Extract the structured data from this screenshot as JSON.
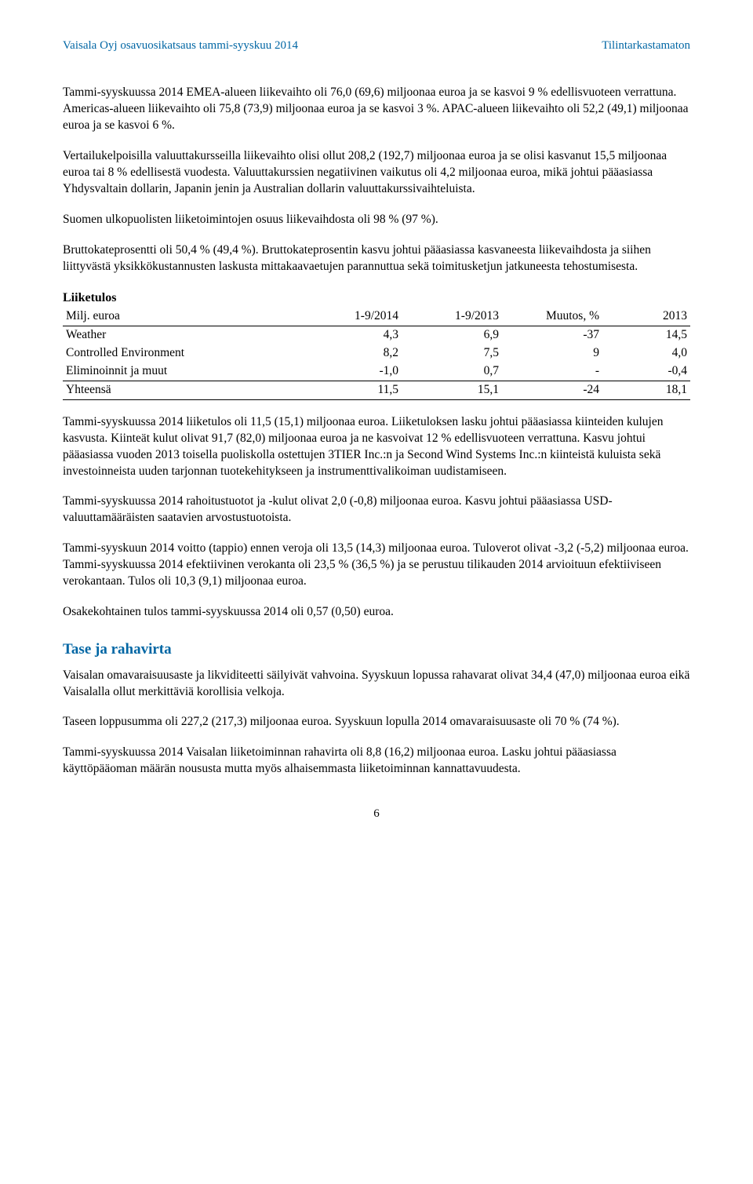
{
  "header": {
    "left": "Vaisala Oyj osavuosikatsaus tammi-syyskuu 2014",
    "right": "Tilintarkastamaton"
  },
  "paragraphs": {
    "p1": "Tammi-syyskuussa 2014 EMEA-alueen liikevaihto oli 76,0 (69,6) miljoonaa euroa ja se kasvoi 9 % edellisvuoteen verrattuna. Americas-alueen liikevaihto oli 75,8 (73,9) miljoonaa euroa ja se kasvoi 3 %. APAC-alueen liikevaihto oli 52,2 (49,1) miljoonaa euroa ja se kasvoi 6 %.",
    "p2": "Vertailukelpoisilla valuuttakursseilla liikevaihto olisi ollut 208,2 (192,7) miljoonaa euroa ja se olisi kasvanut 15,5 miljoonaa euroa tai 8 % edellisestä vuodesta. Valuuttakurssien negatiivinen vaikutus oli 4,2 miljoonaa euroa, mikä johtui pääasiassa Yhdysvaltain dollarin, Japanin jenin ja Australian dollarin valuuttakurssivaihteluista.",
    "p3": "Suomen ulkopuolisten liiketoimintojen osuus liikevaihdosta oli 98 % (97 %).",
    "p4": "Bruttokateprosentti oli 50,4 % (49,4 %). Bruttokateprosentin kasvu johtui pääasiassa kasvaneesta liikevaihdosta ja siihen liittyvästä yksikkökustannusten laskusta mittakaavaetujen parannuttua sekä toimitusketjun jatkuneesta tehostumisesta.",
    "p5": "Tammi-syyskuussa 2014 liiketulos oli 11,5 (15,1) miljoonaa euroa. Liiketuloksen lasku johtui pääasiassa kiinteiden kulujen kasvusta. Kiinteät kulut olivat 91,7 (82,0) miljoonaa euroa ja ne kasvoivat 12 % edellisvuoteen verrattuna. Kasvu johtui pääasiassa vuoden 2013 toisella puoliskolla ostettujen 3TIER Inc.:n ja Second Wind Systems Inc.:n kiinteistä kuluista sekä investoinneista uuden tarjonnan tuotekehitykseen ja instrumenttivalikoiman uudistamiseen.",
    "p6": "Tammi-syyskuussa 2014 rahoitustuotot ja -kulut olivat 2,0 (-0,8) miljoonaa euroa. Kasvu johtui pääasiassa USD-valuuttamääräisten saatavien arvostustuotoista.",
    "p7": "Tammi-syyskuun 2014 voitto (tappio) ennen veroja oli 13,5 (14,3) miljoonaa euroa. Tuloverot olivat -3,2 (-5,2) miljoonaa euroa. Tammi-syyskuussa 2014 efektiivinen verokanta oli 23,5 % (36,5 %) ja se perustuu tilikauden 2014 arvioituun efektiiviseen verokantaan. Tulos oli 10,3 (9,1) miljoonaa euroa.",
    "p8": "Osakekohtainen tulos tammi-syyskuussa 2014 oli 0,57 (0,50) euroa.",
    "p9": "Vaisalan omavaraisuusaste ja likviditeetti säilyivät vahvoina. Syyskuun lopussa rahavarat olivat 34,4 (47,0) miljoonaa euroa eikä Vaisalalla ollut merkittäviä korollisia velkoja.",
    "p10": "Taseen loppusumma oli 227,2 (217,3) miljoonaa euroa. Syyskuun lopulla 2014 omavaraisuusaste oli 70 % (74 %).",
    "p11": "Tammi-syyskuussa 2014 Vaisalan liiketoiminnan rahavirta oli 8,8 (16,2) miljoonaa euroa. Lasku johtui pääasiassa käyttöpääoman määrän noususta mutta myös alhaisemmasta liiketoiminnan kannattavuudesta."
  },
  "table": {
    "title": "Liiketulos",
    "head": {
      "c0": "Milj. euroa",
      "c1": "1-9/2014",
      "c2": "1-9/2013",
      "c3": "Muutos, %",
      "c4": "2013"
    },
    "rows": [
      {
        "c0": "Weather",
        "c1": "4,3",
        "c2": "6,9",
        "c3": "-37",
        "c4": "14,5"
      },
      {
        "c0": "Controlled Environment",
        "c1": "8,2",
        "c2": "7,5",
        "c3": "9",
        "c4": "4,0"
      },
      {
        "c0": "Eliminoinnit ja muut",
        "c1": "-1,0",
        "c2": "0,7",
        "c3": "-",
        "c4": "-0,4"
      }
    ],
    "total": {
      "c0": "Yhteensä",
      "c1": "11,5",
      "c2": "15,1",
      "c3": "-24",
      "c4": "18,1"
    }
  },
  "section2_title": "Tase ja rahavirta",
  "page_number": "6",
  "colors": {
    "accent": "#0066a4",
    "text": "#000000",
    "background": "#ffffff"
  }
}
